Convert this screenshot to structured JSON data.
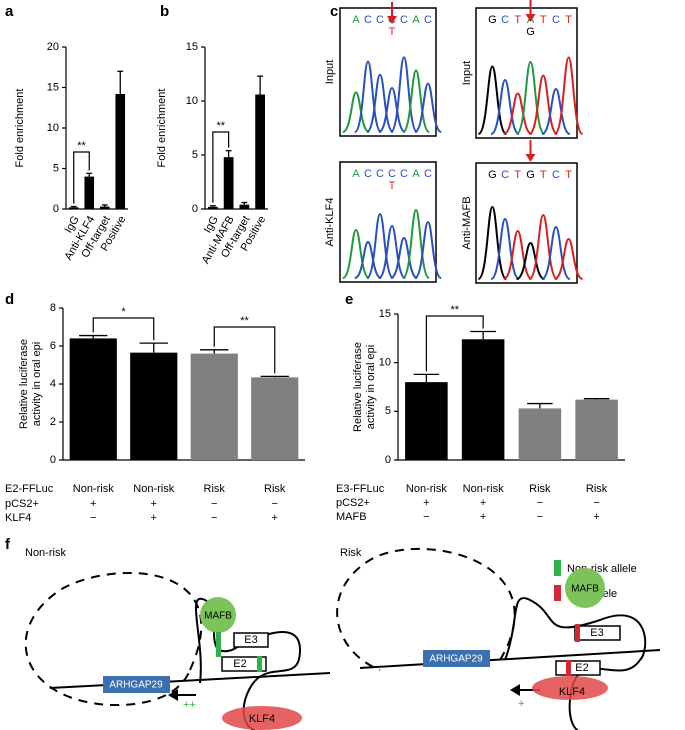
{
  "chart_data": [
    {
      "type": "bar",
      "panel": "a",
      "ylabel": "Fold enrichment",
      "categories": [
        "IgG",
        "Anti-KLF4",
        "Off-target",
        "Positive"
      ],
      "values": [
        0.2,
        4.0,
        0.3,
        14.2
      ],
      "errors": [
        0.1,
        0.4,
        0.2,
        2.8
      ],
      "colors": [
        "#000000",
        "#000000",
        "#000000",
        "#000000"
      ],
      "ylim": [
        0,
        20
      ],
      "yticks": [
        0,
        5,
        10,
        15,
        20
      ],
      "annotations": [
        "**"
      ]
    },
    {
      "type": "bar",
      "panel": "b",
      "ylabel": "Fold enrichment",
      "categories": [
        "IgG",
        "Anti-MAFB",
        "Off-target",
        "Positive"
      ],
      "values": [
        0.2,
        4.8,
        0.4,
        10.6
      ],
      "errors": [
        0.1,
        0.6,
        0.2,
        1.7
      ],
      "colors": [
        "#000000",
        "#000000",
        "#000000",
        "#000000"
      ],
      "ylim": [
        0,
        15
      ],
      "yticks": [
        0,
        5,
        10,
        15
      ],
      "annotations": [
        "**"
      ]
    },
    {
      "type": "bar",
      "panel": "d",
      "ylabel": [
        "Relative luciferase",
        "activity in oral epi"
      ],
      "values": [
        6.4,
        5.65,
        5.6,
        4.35
      ],
      "errors": [
        0.15,
        0.5,
        0.2,
        0.05
      ],
      "colors": [
        "#000000",
        "#000000",
        "#808080",
        "#808080"
      ],
      "ylim": [
        0,
        8
      ],
      "yticks": [
        0,
        2,
        4,
        6,
        8
      ],
      "annotations": [
        "*",
        "**"
      ],
      "rows": [
        {
          "label": "E2-FFLuc",
          "cells": [
            "Non-risk",
            "Non-risk",
            "Risk",
            "Risk"
          ]
        },
        {
          "label": "pCS2+",
          "cells": [
            "+",
            "+",
            "−",
            "−"
          ]
        },
        {
          "label": "KLF4",
          "cells": [
            "−",
            "+",
            "−",
            "+"
          ]
        }
      ]
    },
    {
      "type": "bar",
      "panel": "e",
      "ylabel": [
        "Relative luciferase",
        "activity in oral epi"
      ],
      "values": [
        8.0,
        12.4,
        5.3,
        6.2
      ],
      "errors": [
        0.8,
        0.8,
        0.5,
        0.1
      ],
      "colors": [
        "#000000",
        "#000000",
        "#808080",
        "#808080"
      ],
      "ylim": [
        0,
        15
      ],
      "yticks": [
        0,
        5,
        10,
        15
      ],
      "annotations": [
        "**"
      ],
      "rows": [
        {
          "label": "E3-FFLuc",
          "cells": [
            "Non-risk",
            "Non-risk",
            "Risk",
            "Risk"
          ]
        },
        {
          "label": "pCS2+",
          "cells": [
            "+",
            "+",
            "−",
            "−"
          ]
        },
        {
          "label": "MAFB",
          "cells": [
            "−",
            "+",
            "−",
            "+"
          ]
        }
      ]
    }
  ],
  "panel_c": {
    "panel": "c",
    "traces": [
      {
        "label": "Input",
        "bases": [
          "A",
          "C",
          "C",
          "C",
          "C",
          "A",
          "C"
        ],
        "variant": "T"
      },
      {
        "label": "Anti-KLF4",
        "bases": [
          "A",
          "C",
          "C",
          "C",
          "C",
          "A",
          "C"
        ],
        "variant": "T"
      },
      {
        "label": "Input",
        "bases": [
          "G",
          "C",
          "T",
          "A",
          "T",
          "C",
          "T"
        ],
        "variant": "G"
      },
      {
        "label": "Anti-MAFB",
        "bases": [
          "G",
          "C",
          "T",
          "G",
          "T",
          "C",
          "T"
        ]
      }
    ]
  },
  "panel_f": {
    "panel": "f",
    "legend": [
      "Non-risk allele",
      "Risk allele"
    ],
    "left": {
      "title": "Non-risk",
      "gene": "ARHGAP29",
      "top_protein": "MAFB",
      "upper_element": "E3",
      "lower_element": "E2",
      "bottom_protein": "KLF4",
      "activity": "++"
    },
    "right": {
      "title": "Risk",
      "gene": "ARHGAP29",
      "top_protein": "MAFB",
      "upper_element": "E3",
      "lower_element": "E2",
      "bottom_protein": "KLF4",
      "activity": "+"
    }
  }
}
